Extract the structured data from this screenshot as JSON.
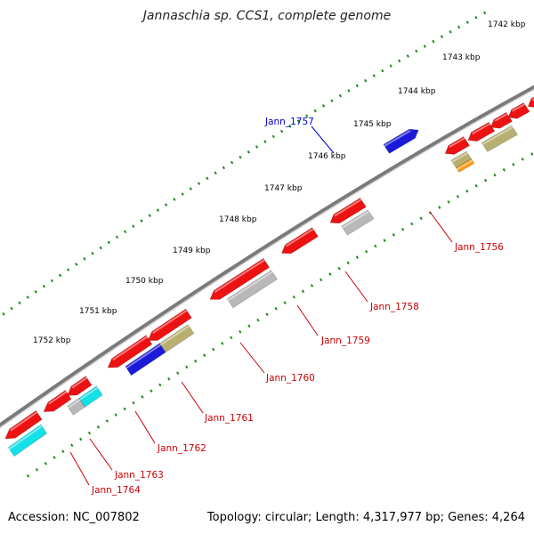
{
  "title": "Jannaschia sp. CCS1, complete genome",
  "footer": {
    "accession": "Accession: NC_007802",
    "summary": "Topology: circular; Length: 4,317,977 bp; Genes: 4,264"
  },
  "ticks": [
    "1742 kbp",
    "1743 kbp",
    "1744 kbp",
    "1745 kbp",
    "1746 kbp",
    "1747 kbp",
    "1748 kbp",
    "1749 kbp",
    "1750 kbp",
    "1751 kbp",
    "1752 kbp"
  ],
  "colors": {
    "red": "#ee1111",
    "blue": "#1a1ad8",
    "gray": "#b8b8b8",
    "olive": "#b8b070",
    "cyan": "#14e0e8",
    "orange": "#ff9a10",
    "steel": "#4a7aa8",
    "backbone": "#7a7a7a",
    "tickdot": "#1a8a1a",
    "label_red": "#cc0000",
    "label_blue": "#0000cc"
  },
  "genes": [
    {
      "id": "Jann_1756",
      "label": "Jann_1756",
      "color": "red"
    },
    {
      "id": "Jann_1757",
      "label": "Jann_1757",
      "color": "blue"
    },
    {
      "id": "Jann_1758",
      "label": "Jann_1758",
      "color": "red"
    },
    {
      "id": "Jann_1759",
      "label": "Jann_1759",
      "color": "red"
    },
    {
      "id": "Jann_1760",
      "label": "Jann_1760",
      "color": "red"
    },
    {
      "id": "Jann_1761",
      "label": "Jann_1761",
      "color": "red"
    },
    {
      "id": "Jann_1762",
      "label": "Jann_1762",
      "color": "red"
    },
    {
      "id": "Jann_1763",
      "label": "Jann_1763",
      "color": "red"
    },
    {
      "id": "Jann_1764",
      "label": "Jann_1764",
      "color": "red"
    }
  ]
}
